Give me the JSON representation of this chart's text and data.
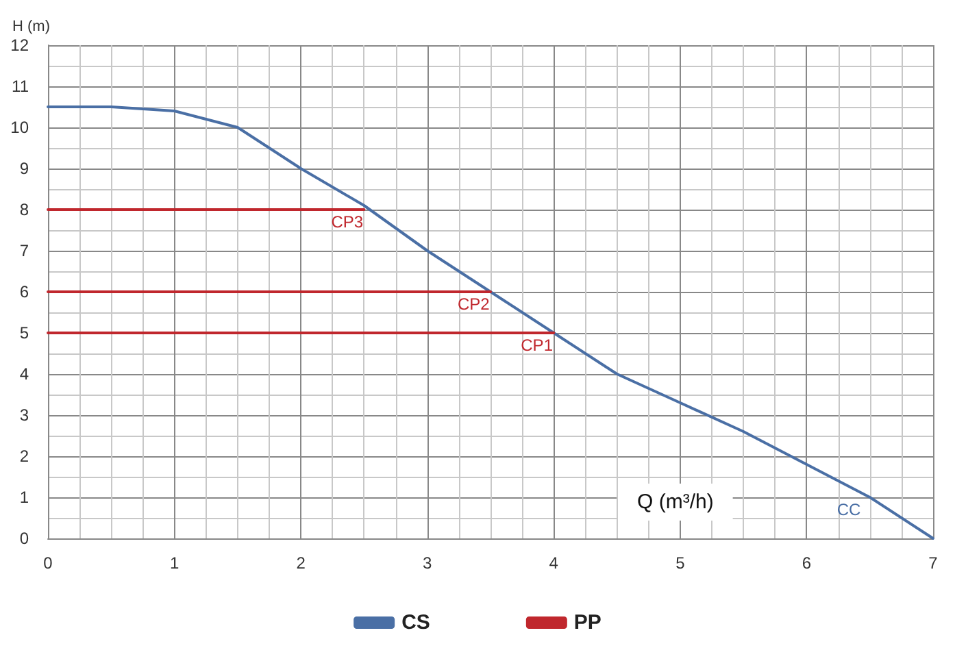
{
  "chart_data": {
    "type": "line",
    "xlabel": "Q (m³/h)",
    "ylabel": "H (m)",
    "series": [
      {
        "name": "CS",
        "color": "#4a6fa5",
        "x": [
          0,
          0.5,
          1,
          1.5,
          2,
          2.5,
          3,
          3.5,
          4,
          4.5,
          5,
          5.5,
          6,
          6.5,
          7
        ],
        "values": [
          10.5,
          10.5,
          10.4,
          10.0,
          9.0,
          8.1,
          7.0,
          6.0,
          5.0,
          4.0,
          3.3,
          2.6,
          1.8,
          1.0,
          0
        ]
      },
      {
        "name": "PP",
        "color": "#c0272d",
        "x": [
          0,
          2.5,
          null,
          0,
          3.5,
          null,
          0,
          4
        ],
        "values": [
          8,
          8,
          null,
          6,
          6,
          null,
          5,
          5
        ]
      }
    ],
    "annotations": [
      {
        "text": "CP3",
        "x": 2.5,
        "y": 8
      },
      {
        "text": "CP2",
        "x": 3.5,
        "y": 6
      },
      {
        "text": "CP1",
        "x": 4,
        "y": 5
      },
      {
        "text": "CC",
        "x": 6.5,
        "y": 1
      }
    ],
    "xlim": [
      0,
      7
    ],
    "xticks": [
      0,
      1,
      2,
      3,
      4,
      5,
      6,
      7
    ],
    "ylim": [
      0,
      12
    ],
    "yticks": [
      0,
      1,
      2,
      3,
      4,
      5,
      6,
      7,
      8,
      9,
      10,
      11,
      12
    ],
    "grid": true,
    "legend": "bottom",
    "marker": "none",
    "line_style": "solid"
  }
}
